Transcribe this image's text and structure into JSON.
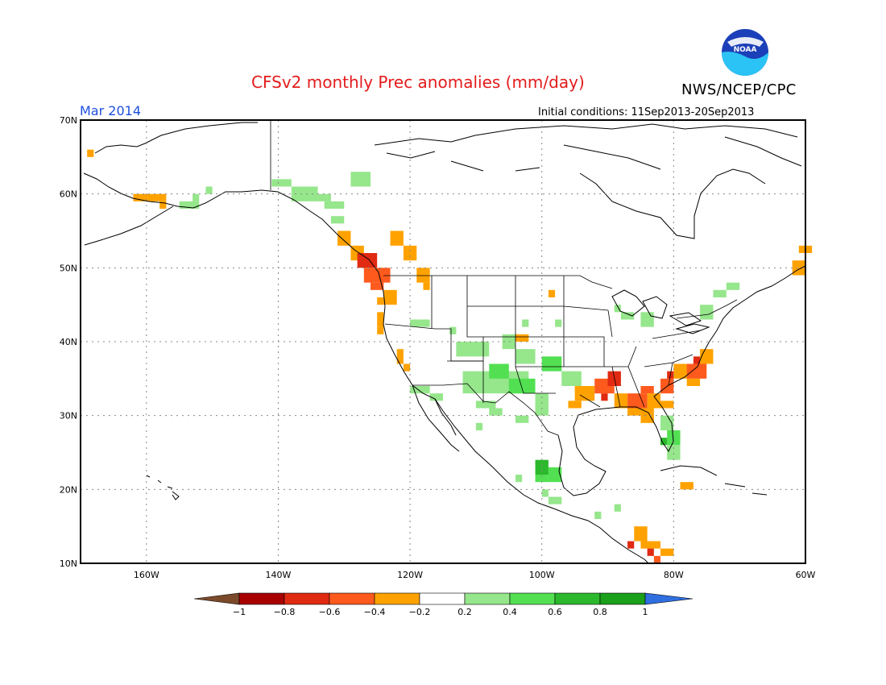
{
  "header": {
    "title": "CFSv2 monthly Prec anomalies (mm/day)",
    "agency": "NWS/NCEP/CPC",
    "valid_month": "Mar 2014",
    "initial_conditions": "Initial conditions: 11Sep2013-20Sep2013",
    "logo_text": "NOAA"
  },
  "map": {
    "lat_labels": [
      "70N",
      "60N",
      "50N",
      "40N",
      "30N",
      "20N",
      "10N"
    ],
    "lon_labels": [
      "160W",
      "140W",
      "120W",
      "100W",
      "80W",
      "60W"
    ],
    "lat_range": [
      10,
      70
    ],
    "lon_range": [
      -170,
      -60
    ]
  },
  "legend": {
    "labels": [
      "−1",
      "−0.8",
      "−0.6",
      "−0.4",
      "−0.2",
      "0.2",
      "0.4",
      "0.6",
      "0.8",
      "1"
    ],
    "colors": {
      "below_min": "#7a4a2a",
      "bins": [
        "#a80000",
        "#e02a12",
        "#ff5a1e",
        "#ffa200",
        "#ffffff",
        "#96e68c",
        "#52e052",
        "#2cb82c",
        "#1aa01a"
      ],
      "above_max": "#2f6fe0"
    }
  },
  "anomaly_colors": {
    "dry_mid": "#ffa200",
    "dry_strong": "#ff5a1e",
    "dry_max": "#e02a12",
    "wet_light": "#96e68c",
    "wet_mid": "#52e052",
    "wet_strong": "#2cb82c"
  }
}
